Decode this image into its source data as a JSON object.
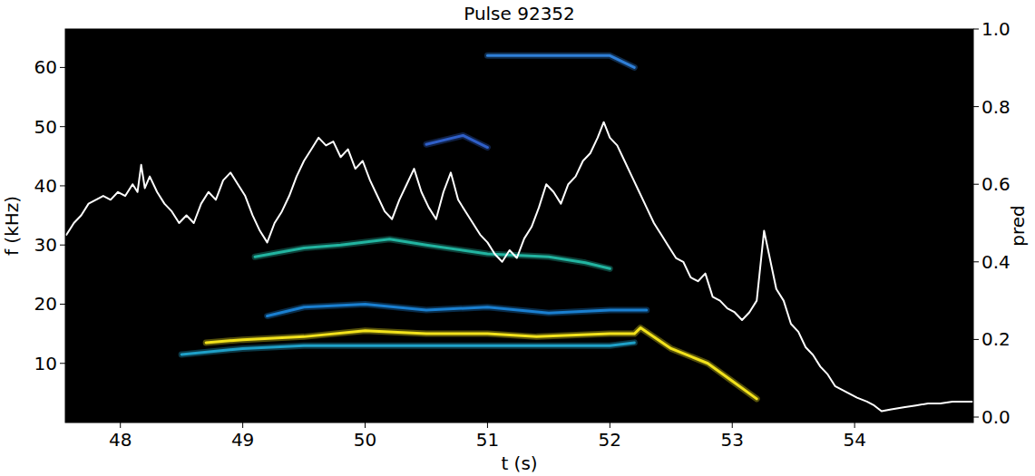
{
  "chart_data": {
    "type": "line",
    "title": "Pulse 92352",
    "x_label": "t (s)",
    "y_label": "f (kHz)",
    "y2_label": "pred",
    "xlim": [
      47.55,
      54.97
    ],
    "xticks": [
      48,
      49,
      50,
      51,
      52,
      53,
      54
    ],
    "ylim": [
      0,
      66.5
    ],
    "yticks": [
      10,
      20,
      30,
      40,
      50,
      60
    ],
    "y2lim": [
      -0.014,
      1.0
    ],
    "y2ticks": [
      {
        "value": 0,
        "label": "0.0"
      },
      0.2,
      0.4,
      0.6,
      0.8,
      {
        "value": 1,
        "label": "1.0"
      }
    ],
    "grid": false,
    "series": [
      {
        "color": "#1fa0c8",
        "x": [
          48.5,
          49.0,
          49.5,
          50.0,
          50.5,
          51.0,
          51.5,
          52.0,
          52.2
        ],
        "values": [
          11.5,
          12.5,
          13,
          13,
          13,
          13,
          13,
          13,
          13.5
        ]
      },
      {
        "color": "#f2e21c",
        "x": [
          48.7,
          49.0,
          49.5,
          50.0,
          50.5,
          51.0,
          51.4,
          52.0,
          52.2,
          52.25,
          52.5,
          52.8,
          53.0,
          53.2
        ],
        "values": [
          13.5,
          14,
          14.5,
          15.5,
          15,
          15,
          14.5,
          15,
          15,
          16,
          12.5,
          10,
          7,
          4
        ]
      },
      {
        "color": "#1a7fd0",
        "x": [
          49.2,
          49.5,
          50.0,
          50.5,
          51.0,
          51.5,
          52.0,
          52.3
        ],
        "values": [
          18,
          19.5,
          20,
          19,
          19.5,
          18.5,
          19,
          19
        ]
      },
      {
        "color": "#22b4a0",
        "x": [
          49.1,
          49.5,
          49.8,
          50.2,
          50.5,
          51.0,
          51.5,
          51.8,
          52.0
        ],
        "values": [
          28,
          29.5,
          30,
          31,
          30,
          28.5,
          28,
          27,
          26
        ]
      },
      {
        "color": "#2f5fc8",
        "x": [
          50.5,
          50.8,
          51.0
        ],
        "values": [
          47,
          48.5,
          46.5
        ]
      },
      {
        "color": "#2f7fd8",
        "x": [
          51.0,
          51.5,
          52.0,
          52.2
        ],
        "values": [
          62,
          62,
          62,
          60
        ]
      },
      {
        "color": "#ffffff",
        "axis": "y2",
        "x": [
          47.56,
          47.62,
          47.68,
          47.74,
          47.8,
          47.86,
          47.92,
          47.98,
          48.04,
          48.1,
          48.14,
          48.17,
          48.2,
          48.24,
          48.3,
          48.36,
          48.42,
          48.48,
          48.54,
          48.6,
          48.66,
          48.72,
          48.78,
          48.84,
          48.9,
          48.96,
          49.02,
          49.08,
          49.14,
          49.2,
          49.26,
          49.32,
          49.38,
          49.44,
          49.5,
          49.56,
          49.62,
          49.68,
          49.74,
          49.8,
          49.86,
          49.92,
          49.98,
          50.04,
          50.1,
          50.16,
          50.22,
          50.28,
          50.34,
          50.4,
          50.46,
          50.52,
          50.58,
          50.64,
          50.7,
          50.76,
          50.82,
          50.88,
          50.94,
          51.0,
          51.06,
          51.12,
          51.18,
          51.24,
          51.3,
          51.36,
          51.42,
          51.48,
          51.54,
          51.6,
          51.66,
          51.72,
          51.78,
          51.84,
          51.9,
          51.95,
          52.0,
          52.06,
          52.12,
          52.18,
          52.24,
          52.3,
          52.36,
          52.42,
          52.48,
          52.54,
          52.6,
          52.66,
          52.72,
          52.78,
          52.84,
          52.9,
          52.96,
          53.02,
          53.08,
          53.14,
          53.2,
          53.26,
          53.3,
          53.36,
          53.42,
          53.48,
          53.54,
          53.6,
          53.66,
          53.72,
          53.78,
          53.84,
          53.9,
          53.96,
          54.02,
          54.1,
          54.16,
          54.22,
          54.3,
          54.4,
          54.5,
          54.6,
          54.7,
          54.8,
          54.96
        ],
        "values": [
          0.47,
          0.5,
          0.52,
          0.55,
          0.56,
          0.57,
          0.56,
          0.58,
          0.57,
          0.6,
          0.58,
          0.65,
          0.59,
          0.62,
          0.58,
          0.55,
          0.53,
          0.5,
          0.52,
          0.5,
          0.55,
          0.58,
          0.56,
          0.61,
          0.63,
          0.6,
          0.57,
          0.52,
          0.48,
          0.45,
          0.5,
          0.53,
          0.57,
          0.62,
          0.66,
          0.69,
          0.72,
          0.7,
          0.71,
          0.67,
          0.69,
          0.64,
          0.66,
          0.61,
          0.57,
          0.53,
          0.51,
          0.56,
          0.6,
          0.64,
          0.58,
          0.54,
          0.51,
          0.58,
          0.63,
          0.56,
          0.53,
          0.5,
          0.47,
          0.45,
          0.42,
          0.4,
          0.43,
          0.41,
          0.46,
          0.49,
          0.54,
          0.6,
          0.58,
          0.55,
          0.6,
          0.62,
          0.66,
          0.68,
          0.72,
          0.76,
          0.72,
          0.7,
          0.66,
          0.62,
          0.58,
          0.54,
          0.5,
          0.47,
          0.44,
          0.41,
          0.4,
          0.36,
          0.35,
          0.37,
          0.31,
          0.3,
          0.28,
          0.27,
          0.25,
          0.27,
          0.3,
          0.48,
          0.42,
          0.33,
          0.3,
          0.24,
          0.22,
          0.18,
          0.16,
          0.13,
          0.11,
          0.08,
          0.07,
          0.06,
          0.05,
          0.04,
          0.03,
          0.015,
          0.02,
          0.025,
          0.03,
          0.035,
          0.035,
          0.04,
          0.04
        ]
      }
    ]
  }
}
